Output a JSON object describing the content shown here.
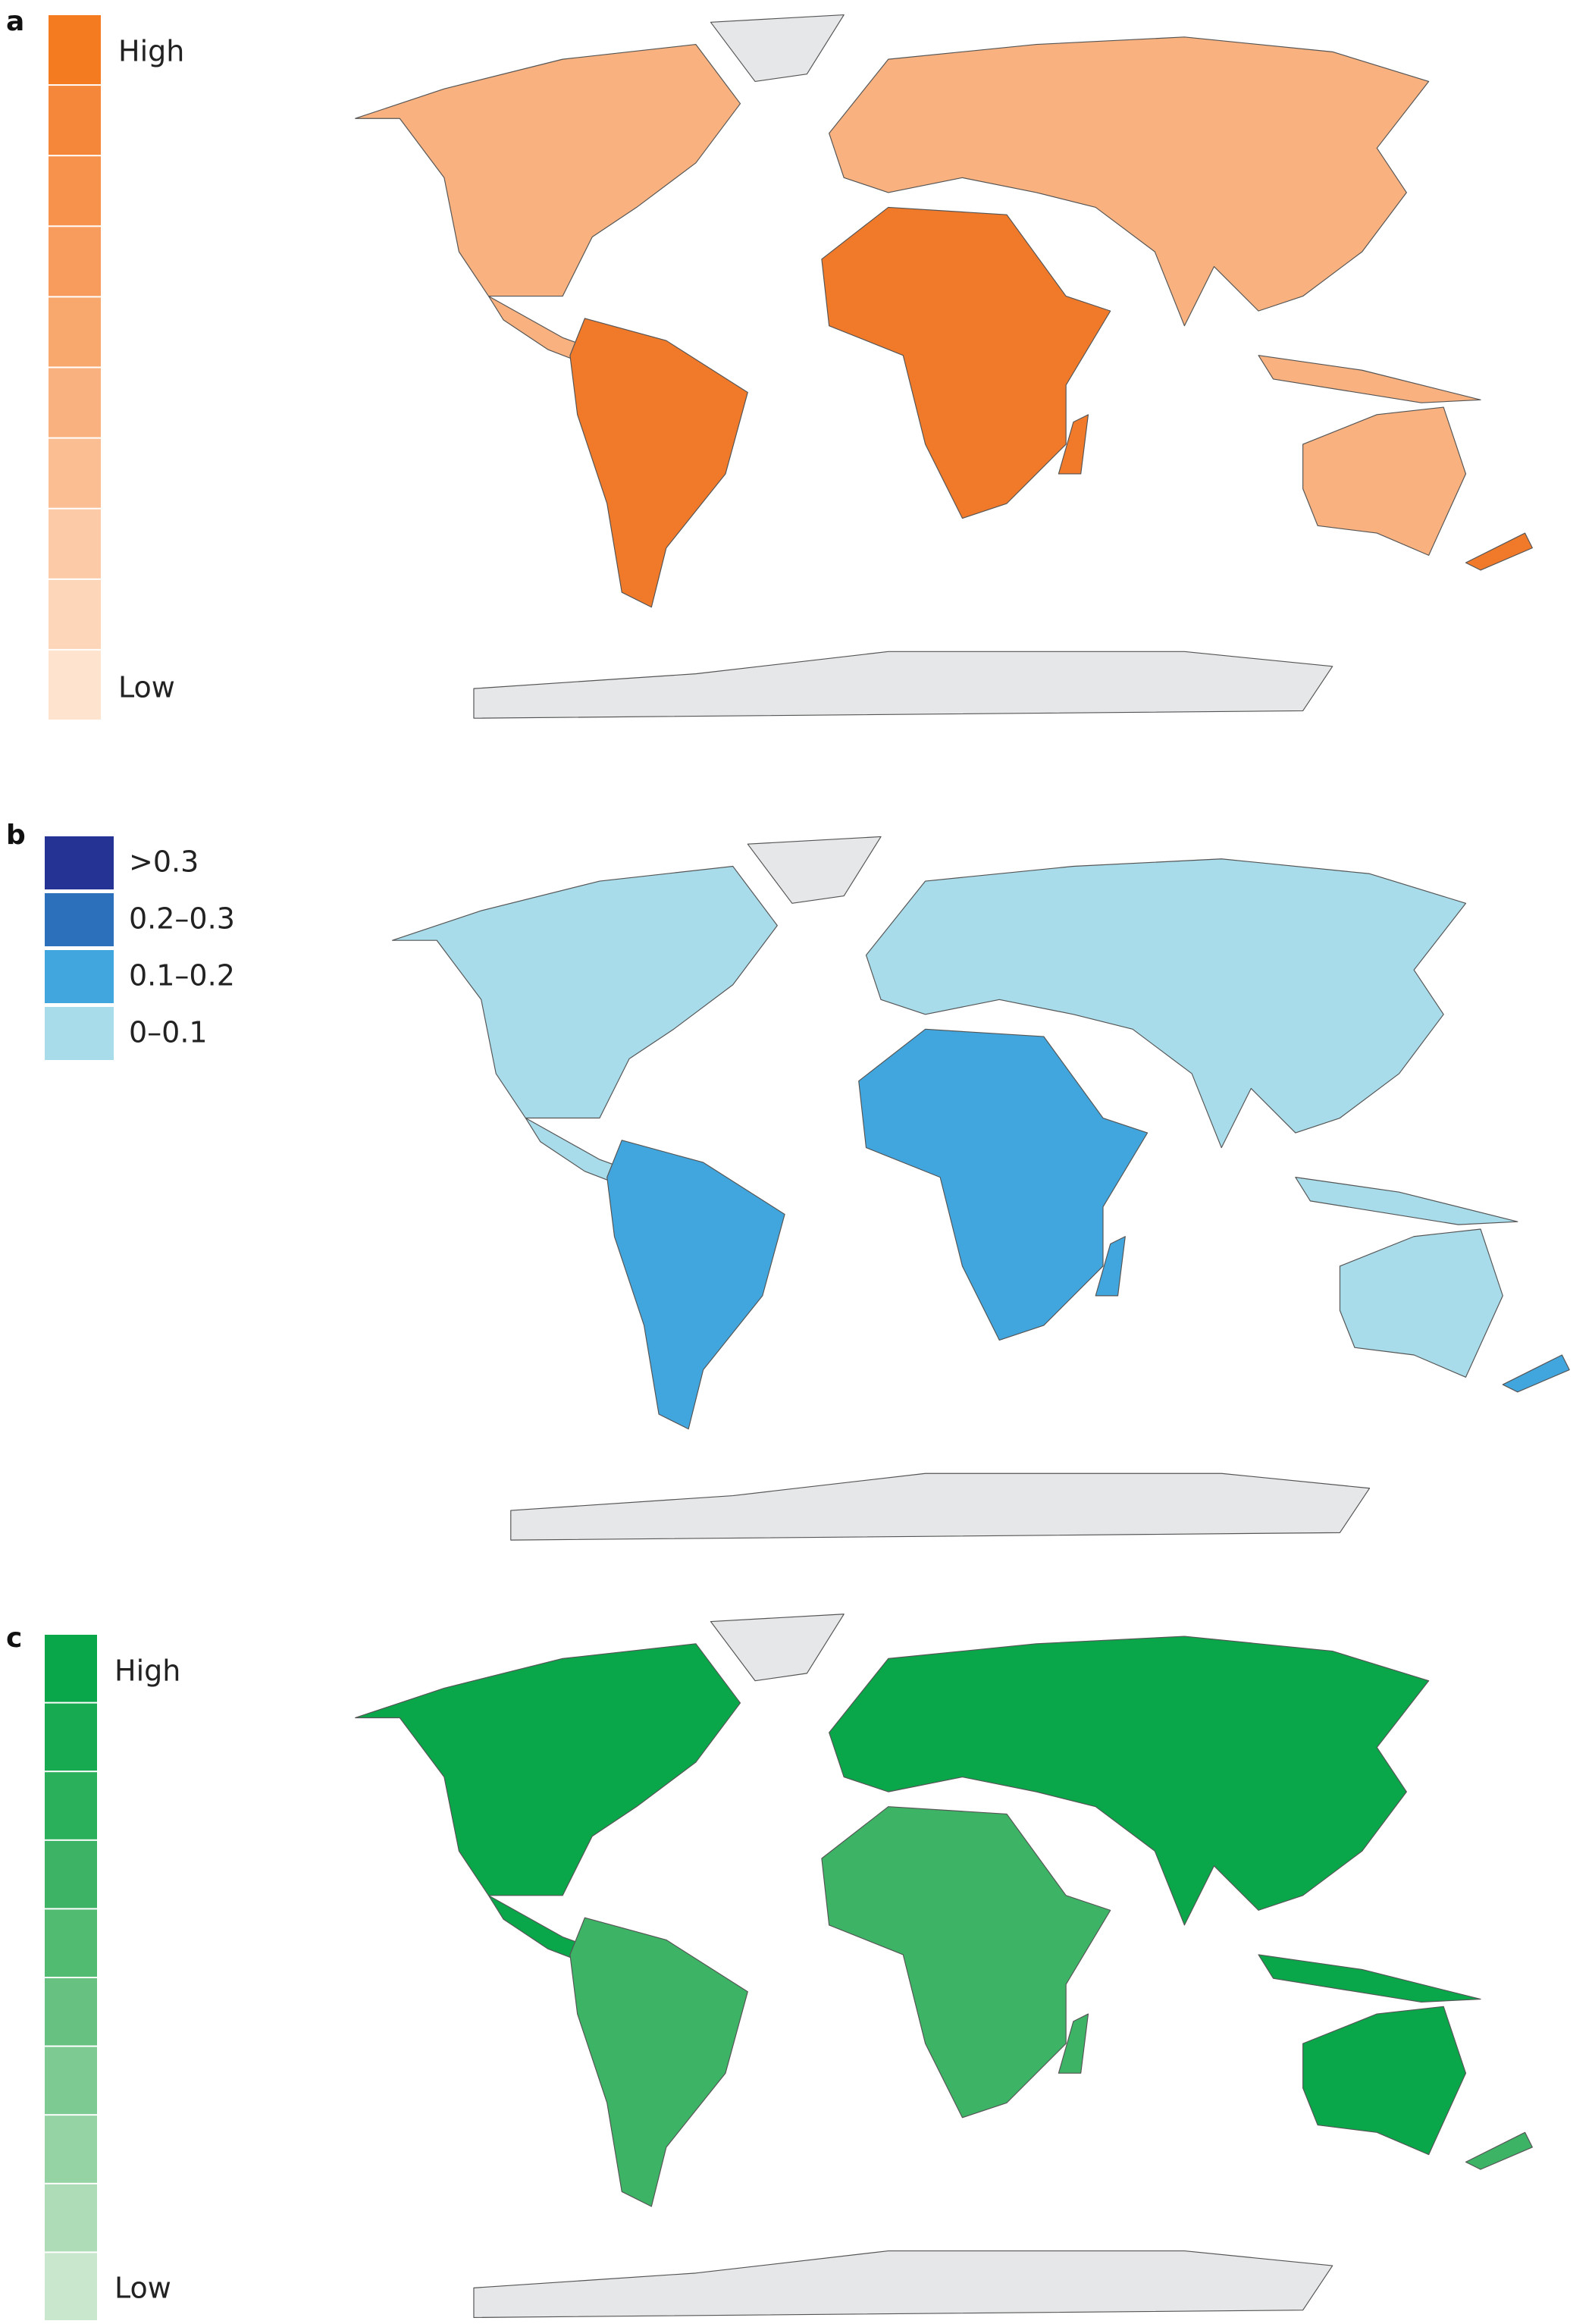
{
  "panels": [
    {
      "label": "a",
      "legend": {
        "high": "High",
        "low": "Low",
        "colors": [
          "#f47b20",
          "#f5873a",
          "#f6924c",
          "#f79c5c",
          "#f8a76d",
          "#f9b27f",
          "#fbbe93",
          "#fccaa7",
          "#fdd6ba",
          "#fee4cf"
        ]
      }
    },
    {
      "label": "b",
      "legend": {
        "items": [
          {
            "label": ">0.3",
            "color": "#253494"
          },
          {
            "label": "0.2–0.3",
            "color": "#2c6fbb"
          },
          {
            "label": "0.1–0.2",
            "color": "#41a6de"
          },
          {
            "label": "0–0.1",
            "color": "#a8dcea"
          }
        ]
      }
    },
    {
      "label": "c",
      "legend": {
        "high": "High",
        "low": "Low",
        "colors": [
          "#0aa64a",
          "#17aa51",
          "#2aaf5a",
          "#3db465",
          "#52bb72",
          "#67c281",
          "#7dca92",
          "#95d3a4",
          "#aedcb7",
          "#c9e7cd"
        ]
      }
    }
  ]
}
